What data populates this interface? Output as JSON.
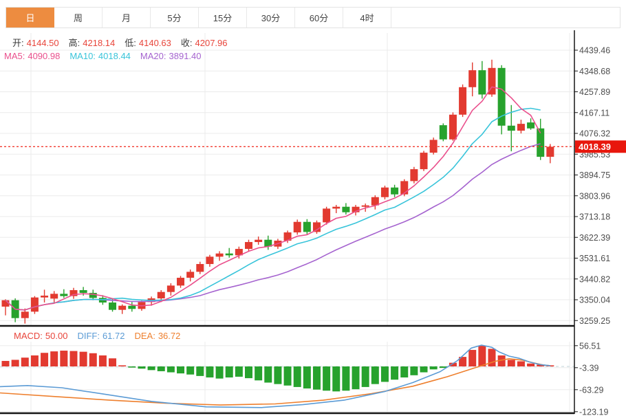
{
  "tabs": [
    {
      "id": "day",
      "label": "日",
      "active": true
    },
    {
      "id": "week",
      "label": "周",
      "active": false
    },
    {
      "id": "month",
      "label": "月",
      "active": false
    },
    {
      "id": "5min",
      "label": "5分",
      "active": false
    },
    {
      "id": "15min",
      "label": "15分",
      "active": false
    },
    {
      "id": "30min",
      "label": "30分",
      "active": false
    },
    {
      "id": "60min",
      "label": "60分",
      "active": false
    },
    {
      "id": "4hour",
      "label": "4时",
      "active": false
    }
  ],
  "header": {
    "ohlc": [
      {
        "label": "开:",
        "value": "4144.50"
      },
      {
        "label": "高:",
        "value": "4218.14"
      },
      {
        "label": "低:",
        "value": "4140.63"
      },
      {
        "label": "收:",
        "value": "4207.96"
      }
    ],
    "ma": [
      {
        "label": "MA5:",
        "value": "4090.98",
        "color": "#ea4f8c"
      },
      {
        "label": "MA10:",
        "value": "4018.44",
        "color": "#38c4da"
      },
      {
        "label": "MA20:",
        "value": "3891.40",
        "color": "#a563cf"
      }
    ]
  },
  "macd_header": [
    {
      "label": "MACD:",
      "value": "50.00",
      "color": "#e8443a"
    },
    {
      "label": "DIFF:",
      "value": "61.72",
      "color": "#5b9bd5"
    },
    {
      "label": "DEA:",
      "value": "36.72",
      "color": "#ee7f2d"
    }
  ],
  "price_tag": {
    "text": "4018.39",
    "price": 4018.39
  },
  "colors": {
    "up": "#e23a30",
    "down": "#27a22d",
    "ma5": "#ea4f8c",
    "ma10": "#38c4da",
    "ma20": "#a563cf",
    "diff": "#5b9bd5",
    "dea": "#ee7f2d",
    "grid": "#ebebeb",
    "axis_text": "#4d4d4d",
    "black": "#151515",
    "dotted_line": "#f2392f",
    "tag_bg": "#e8170d",
    "value_red": "#e8443a"
  },
  "chart_data": {
    "type": "candlestick+macd",
    "title": "",
    "price_axis_labels": [
      "4439.46",
      "4348.68",
      "4257.89",
      "4167.11",
      "4076.32",
      "3985.53",
      "3894.75",
      "3803.96",
      "3713.18",
      "3622.39",
      "3531.61",
      "3440.82",
      "3350.04",
      "3259.25"
    ],
    "price_axis_top_value": 4439.46,
    "price_axis_step": 90.785,
    "macd_axis_labels": [
      "56.51",
      "-3.39",
      "-63.29",
      "-123.19"
    ],
    "macd_axis_values": [
      56.51,
      -3.39,
      -63.29,
      -123.19
    ],
    "current_price": 4018.39,
    "ma_periods": [
      5,
      10,
      20
    ],
    "candles_ohlc": [
      [
        3320,
        3352,
        3282,
        3348
      ],
      [
        3348,
        3356,
        3252,
        3270
      ],
      [
        3270,
        3312,
        3246,
        3298
      ],
      [
        3298,
        3366,
        3288,
        3360
      ],
      [
        3360,
        3394,
        3338,
        3368
      ],
      [
        3355,
        3388,
        3336,
        3376
      ],
      [
        3376,
        3396,
        3358,
        3366
      ],
      [
        3366,
        3402,
        3354,
        3392
      ],
      [
        3392,
        3406,
        3368,
        3380
      ],
      [
        3380,
        3394,
        3348,
        3358
      ],
      [
        3358,
        3370,
        3328,
        3338
      ],
      [
        3338,
        3352,
        3298,
        3306
      ],
      [
        3306,
        3330,
        3288,
        3324
      ],
      [
        3324,
        3340,
        3298,
        3310
      ],
      [
        3310,
        3346,
        3302,
        3340
      ],
      [
        3340,
        3364,
        3324,
        3356
      ],
      [
        3356,
        3392,
        3340,
        3384
      ],
      [
        3384,
        3422,
        3368,
        3412
      ],
      [
        3412,
        3454,
        3402,
        3446
      ],
      [
        3446,
        3482,
        3430,
        3472
      ],
      [
        3472,
        3516,
        3462,
        3506
      ],
      [
        3506,
        3546,
        3494,
        3538
      ],
      [
        3538,
        3562,
        3520,
        3552
      ],
      [
        3552,
        3576,
        3534,
        3544
      ],
      [
        3544,
        3582,
        3530,
        3572
      ],
      [
        3572,
        3612,
        3562,
        3602
      ],
      [
        3602,
        3626,
        3590,
        3612
      ],
      [
        3612,
        3630,
        3568,
        3582
      ],
      [
        3582,
        3616,
        3572,
        3608
      ],
      [
        3608,
        3652,
        3598,
        3644
      ],
      [
        3644,
        3700,
        3634,
        3690
      ],
      [
        3690,
        3702,
        3636,
        3646
      ],
      [
        3646,
        3696,
        3638,
        3688
      ],
      [
        3688,
        3756,
        3678,
        3748
      ],
      [
        3748,
        3764,
        3728,
        3756
      ],
      [
        3756,
        3772,
        3722,
        3732
      ],
      [
        3732,
        3764,
        3718,
        3756
      ],
      [
        3756,
        3770,
        3734,
        3762
      ],
      [
        3762,
        3806,
        3744,
        3798
      ],
      [
        3798,
        3848,
        3788,
        3840
      ],
      [
        3840,
        3852,
        3798,
        3810
      ],
      [
        3810,
        3876,
        3802,
        3868
      ],
      [
        3868,
        3930,
        3858,
        3920
      ],
      [
        3920,
        4000,
        3912,
        3992
      ],
      [
        3992,
        4058,
        3984,
        4048
      ],
      [
        4112,
        4120,
        4042,
        4050
      ],
      [
        4050,
        4168,
        4044,
        4158
      ],
      [
        4158,
        4290,
        4148,
        4278
      ],
      [
        4278,
        4386,
        4238,
        4352
      ],
      [
        4352,
        4392,
        4228,
        4246
      ],
      [
        4246,
        4398,
        4236,
        4362
      ],
      [
        4362,
        4374,
        4072,
        4110
      ],
      [
        4110,
        4200,
        3998,
        4088
      ],
      [
        4088,
        4136,
        4076,
        4118
      ],
      [
        4124,
        4142,
        4092,
        4098
      ],
      [
        4098,
        4140,
        3960,
        3974
      ],
      [
        3974,
        4030,
        3946,
        4018
      ]
    ],
    "macd_hist": [
      15,
      18,
      24,
      30,
      37,
      41,
      43,
      42,
      40,
      36,
      30,
      22,
      3,
      -3,
      -6,
      -10,
      -13,
      -16,
      -19,
      -22,
      -26,
      -30,
      -33,
      -30,
      -28,
      -32,
      -38,
      -44,
      -48,
      -52,
      -56,
      -60,
      -63,
      -66,
      -68,
      -66,
      -62,
      -56,
      -48,
      -42,
      -36,
      -30,
      -24,
      -16,
      -8,
      -4,
      10,
      26,
      45,
      56,
      48,
      30,
      18,
      14,
      8,
      5,
      3
    ],
    "diff_line": [
      [
        0,
        -55
      ],
      [
        40,
        -52
      ],
      [
        90,
        -58
      ],
      [
        150,
        -75
      ],
      [
        220,
        -95
      ],
      [
        300,
        -110
      ],
      [
        380,
        -112
      ],
      [
        440,
        -104
      ],
      [
        500,
        -92
      ],
      [
        560,
        -68
      ],
      [
        600,
        -44
      ],
      [
        640,
        -14
      ],
      [
        665,
        16
      ],
      [
        685,
        50
      ],
      [
        700,
        58
      ],
      [
        715,
        52
      ],
      [
        725,
        40
      ],
      [
        740,
        28
      ],
      [
        755,
        22
      ],
      [
        770,
        12
      ],
      [
        785,
        5
      ],
      [
        800,
        2
      ]
    ],
    "dea_line": [
      [
        0,
        -72
      ],
      [
        80,
        -82
      ],
      [
        160,
        -92
      ],
      [
        240,
        -100
      ],
      [
        320,
        -105
      ],
      [
        400,
        -102
      ],
      [
        470,
        -92
      ],
      [
        540,
        -74
      ],
      [
        600,
        -54
      ],
      [
        650,
        -28
      ],
      [
        690,
        -4
      ],
      [
        720,
        14
      ],
      [
        740,
        21
      ],
      [
        760,
        17
      ],
      [
        775,
        10
      ],
      [
        790,
        4
      ],
      [
        800,
        2
      ]
    ]
  }
}
